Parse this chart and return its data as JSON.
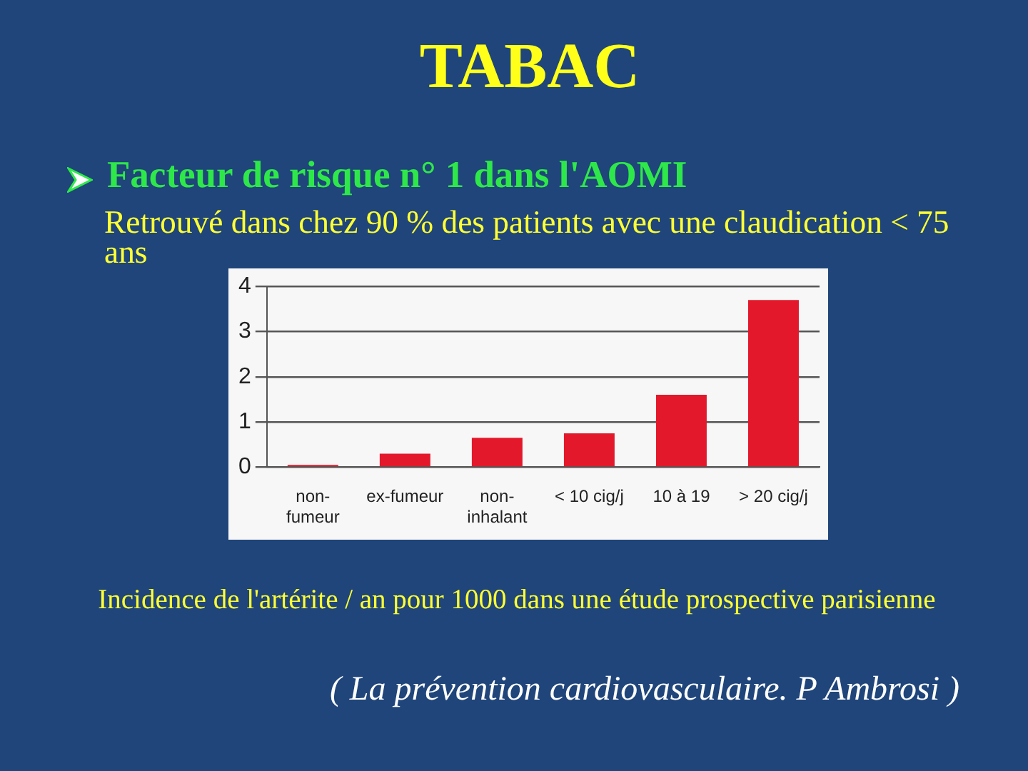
{
  "chart_data": {
    "type": "bar",
    "title": "TABAC",
    "annotations": [
      "Facteur de risque n° 1 dans l'AOMI",
      "Retrouvé dans chez 90 % des patients avec une claudication < 75 ans",
      "Incidence de l'artérite / an pour 1000 dans une étude prospective parisienne",
      "( La prévention cardiovasculaire. P Ambrosi )"
    ],
    "categories": [
      "non-fumeur",
      "ex-fumeur",
      "non-inhalant",
      "< 10 cig/j",
      "10 à 19",
      "> 20 cig/j"
    ],
    "values": [
      0.05,
      0.3,
      0.65,
      0.75,
      1.6,
      3.7
    ],
    "color": "#e3192b",
    "ylim": [
      0,
      4
    ],
    "yticks": [
      0,
      1,
      2,
      3,
      4
    ],
    "grid": "y",
    "legend": false
  }
}
